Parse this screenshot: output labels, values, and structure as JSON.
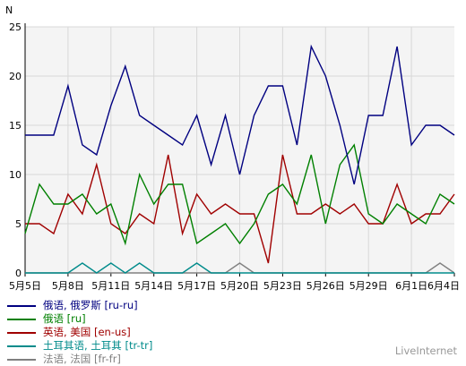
{
  "chart_data": {
    "type": "line",
    "ylabel": "N",
    "ylim": [
      0,
      25
    ],
    "yticks": [
      0,
      5,
      10,
      15,
      20,
      25
    ],
    "grid": true,
    "x_tick_labels": [
      "5月5日",
      "5月8日",
      "5月11日",
      "5月14日",
      "5月17日",
      "5月20日",
      "5月23日",
      "5月26日",
      "5月29日",
      "6月1日",
      "6月4日"
    ],
    "x": [
      "5月5日",
      "5月6日",
      "5月7日",
      "5月8日",
      "5月9日",
      "5月10日",
      "5月11日",
      "5月12日",
      "5月13日",
      "5月14日",
      "5月15日",
      "5月16日",
      "5月17日",
      "5月18日",
      "5月19日",
      "5月20日",
      "5月21日",
      "5月22日",
      "5月23日",
      "5月24日",
      "5月25日",
      "5月26日",
      "5月27日",
      "5月28日",
      "5月29日",
      "5月30日",
      "5月31日",
      "6月1日",
      "6月2日",
      "6月3日",
      "6月4日"
    ],
    "series": [
      {
        "name": "俄语, 俄罗斯 [ru-ru]",
        "color": "#000080",
        "values": [
          14,
          14,
          14,
          19,
          13,
          12,
          17,
          21,
          16,
          15,
          14,
          13,
          16,
          11,
          16,
          10,
          16,
          19,
          19,
          13,
          23,
          20,
          15,
          9,
          16,
          16,
          23,
          13,
          15,
          15,
          14
        ]
      },
      {
        "name": "俄语 [ru]",
        "color": "#008000",
        "values": [
          4,
          9,
          7,
          7,
          8,
          6,
          7,
          3,
          10,
          7,
          9,
          9,
          3,
          4,
          5,
          3,
          5,
          8,
          9,
          7,
          12,
          5,
          11,
          13,
          6,
          5,
          7,
          6,
          5,
          8,
          7
        ]
      },
      {
        "name": "英语, 美国 [en-us]",
        "color": "#a00000",
        "values": [
          5,
          5,
          4,
          8,
          6,
          11,
          5,
          4,
          6,
          5,
          12,
          4,
          8,
          6,
          7,
          6,
          6,
          1,
          12,
          6,
          6,
          7,
          6,
          7,
          5,
          5,
          9,
          5,
          6,
          6,
          8
        ]
      },
      {
        "name": "土耳其语, 土耳其 [tr-tr]",
        "color": "#008b8b",
        "values": [
          0,
          0,
          0,
          0,
          1,
          0,
          1,
          0,
          1,
          0,
          0,
          0,
          1,
          0,
          0,
          0,
          0,
          0,
          0,
          0,
          0,
          0,
          0,
          0,
          0,
          0,
          0,
          0,
          0,
          0,
          0
        ]
      },
      {
        "name": "法语, 法国 [fr-fr]",
        "color": "#808080",
        "values": [
          0,
          0,
          0,
          0,
          0,
          0,
          0,
          0,
          0,
          0,
          0,
          0,
          0,
          0,
          0,
          1,
          0,
          0,
          0,
          0,
          0,
          0,
          0,
          0,
          0,
          0,
          0,
          0,
          0,
          1,
          0
        ]
      }
    ]
  },
  "brand": "LiveInternet"
}
